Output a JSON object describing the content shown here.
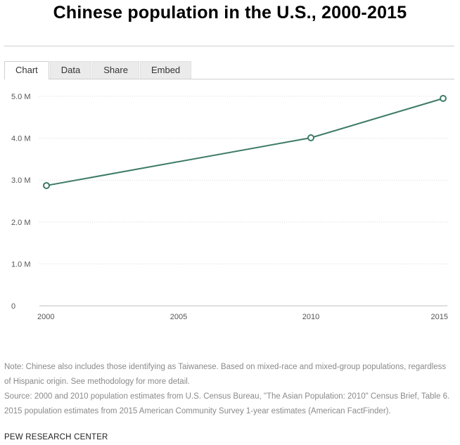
{
  "page": {
    "title": "Chinese population in the U.S., 2000-2015"
  },
  "tabs": [
    {
      "label": "Chart",
      "active": true
    },
    {
      "label": "Data",
      "active": false
    },
    {
      "label": "Share",
      "active": false
    },
    {
      "label": "Embed",
      "active": false
    }
  ],
  "chart_data": {
    "type": "line",
    "title": "Chinese population in the U.S., 2000-2015",
    "xlabel": "",
    "ylabel": "",
    "x": [
      2000,
      2010,
      2015
    ],
    "x_ticks": [
      "2000",
      "2005",
      "2010",
      "2015"
    ],
    "x_tick_values": [
      2000,
      2005,
      2010,
      2015
    ],
    "y_ticks": [
      "0",
      "1.0 M",
      "2.0 M",
      "3.0 M",
      "4.0 M",
      "5.0 M"
    ],
    "y_tick_values": [
      0,
      1000000,
      2000000,
      3000000,
      4000000,
      5000000
    ],
    "ylim": [
      0,
      5000000
    ],
    "xlim": [
      2000,
      2015
    ],
    "grid": true,
    "series": [
      {
        "values": [
          2870000,
          4010000,
          4950000
        ],
        "color": "#3d7a66"
      }
    ]
  },
  "notes": {
    "note": "Note: Chinese also includes those identifying as Taiwanese. Based on mixed-race and mixed-group populations, regardless of Hispanic origin. See methodology for more detail.",
    "source": "Source: 2000 and 2010 population estimates from U.S. Census Bureau, \"The Asian Population: 2010\" Census Brief, Table 6. 2015 population estimates from 2015 American Community Survey 1-year estimates (American FactFinder)."
  },
  "brand": "PEW RESEARCH CENTER",
  "colors": {
    "line": "#3d7a66",
    "grid": "#d9d9d9",
    "axis_text": "#555555"
  }
}
